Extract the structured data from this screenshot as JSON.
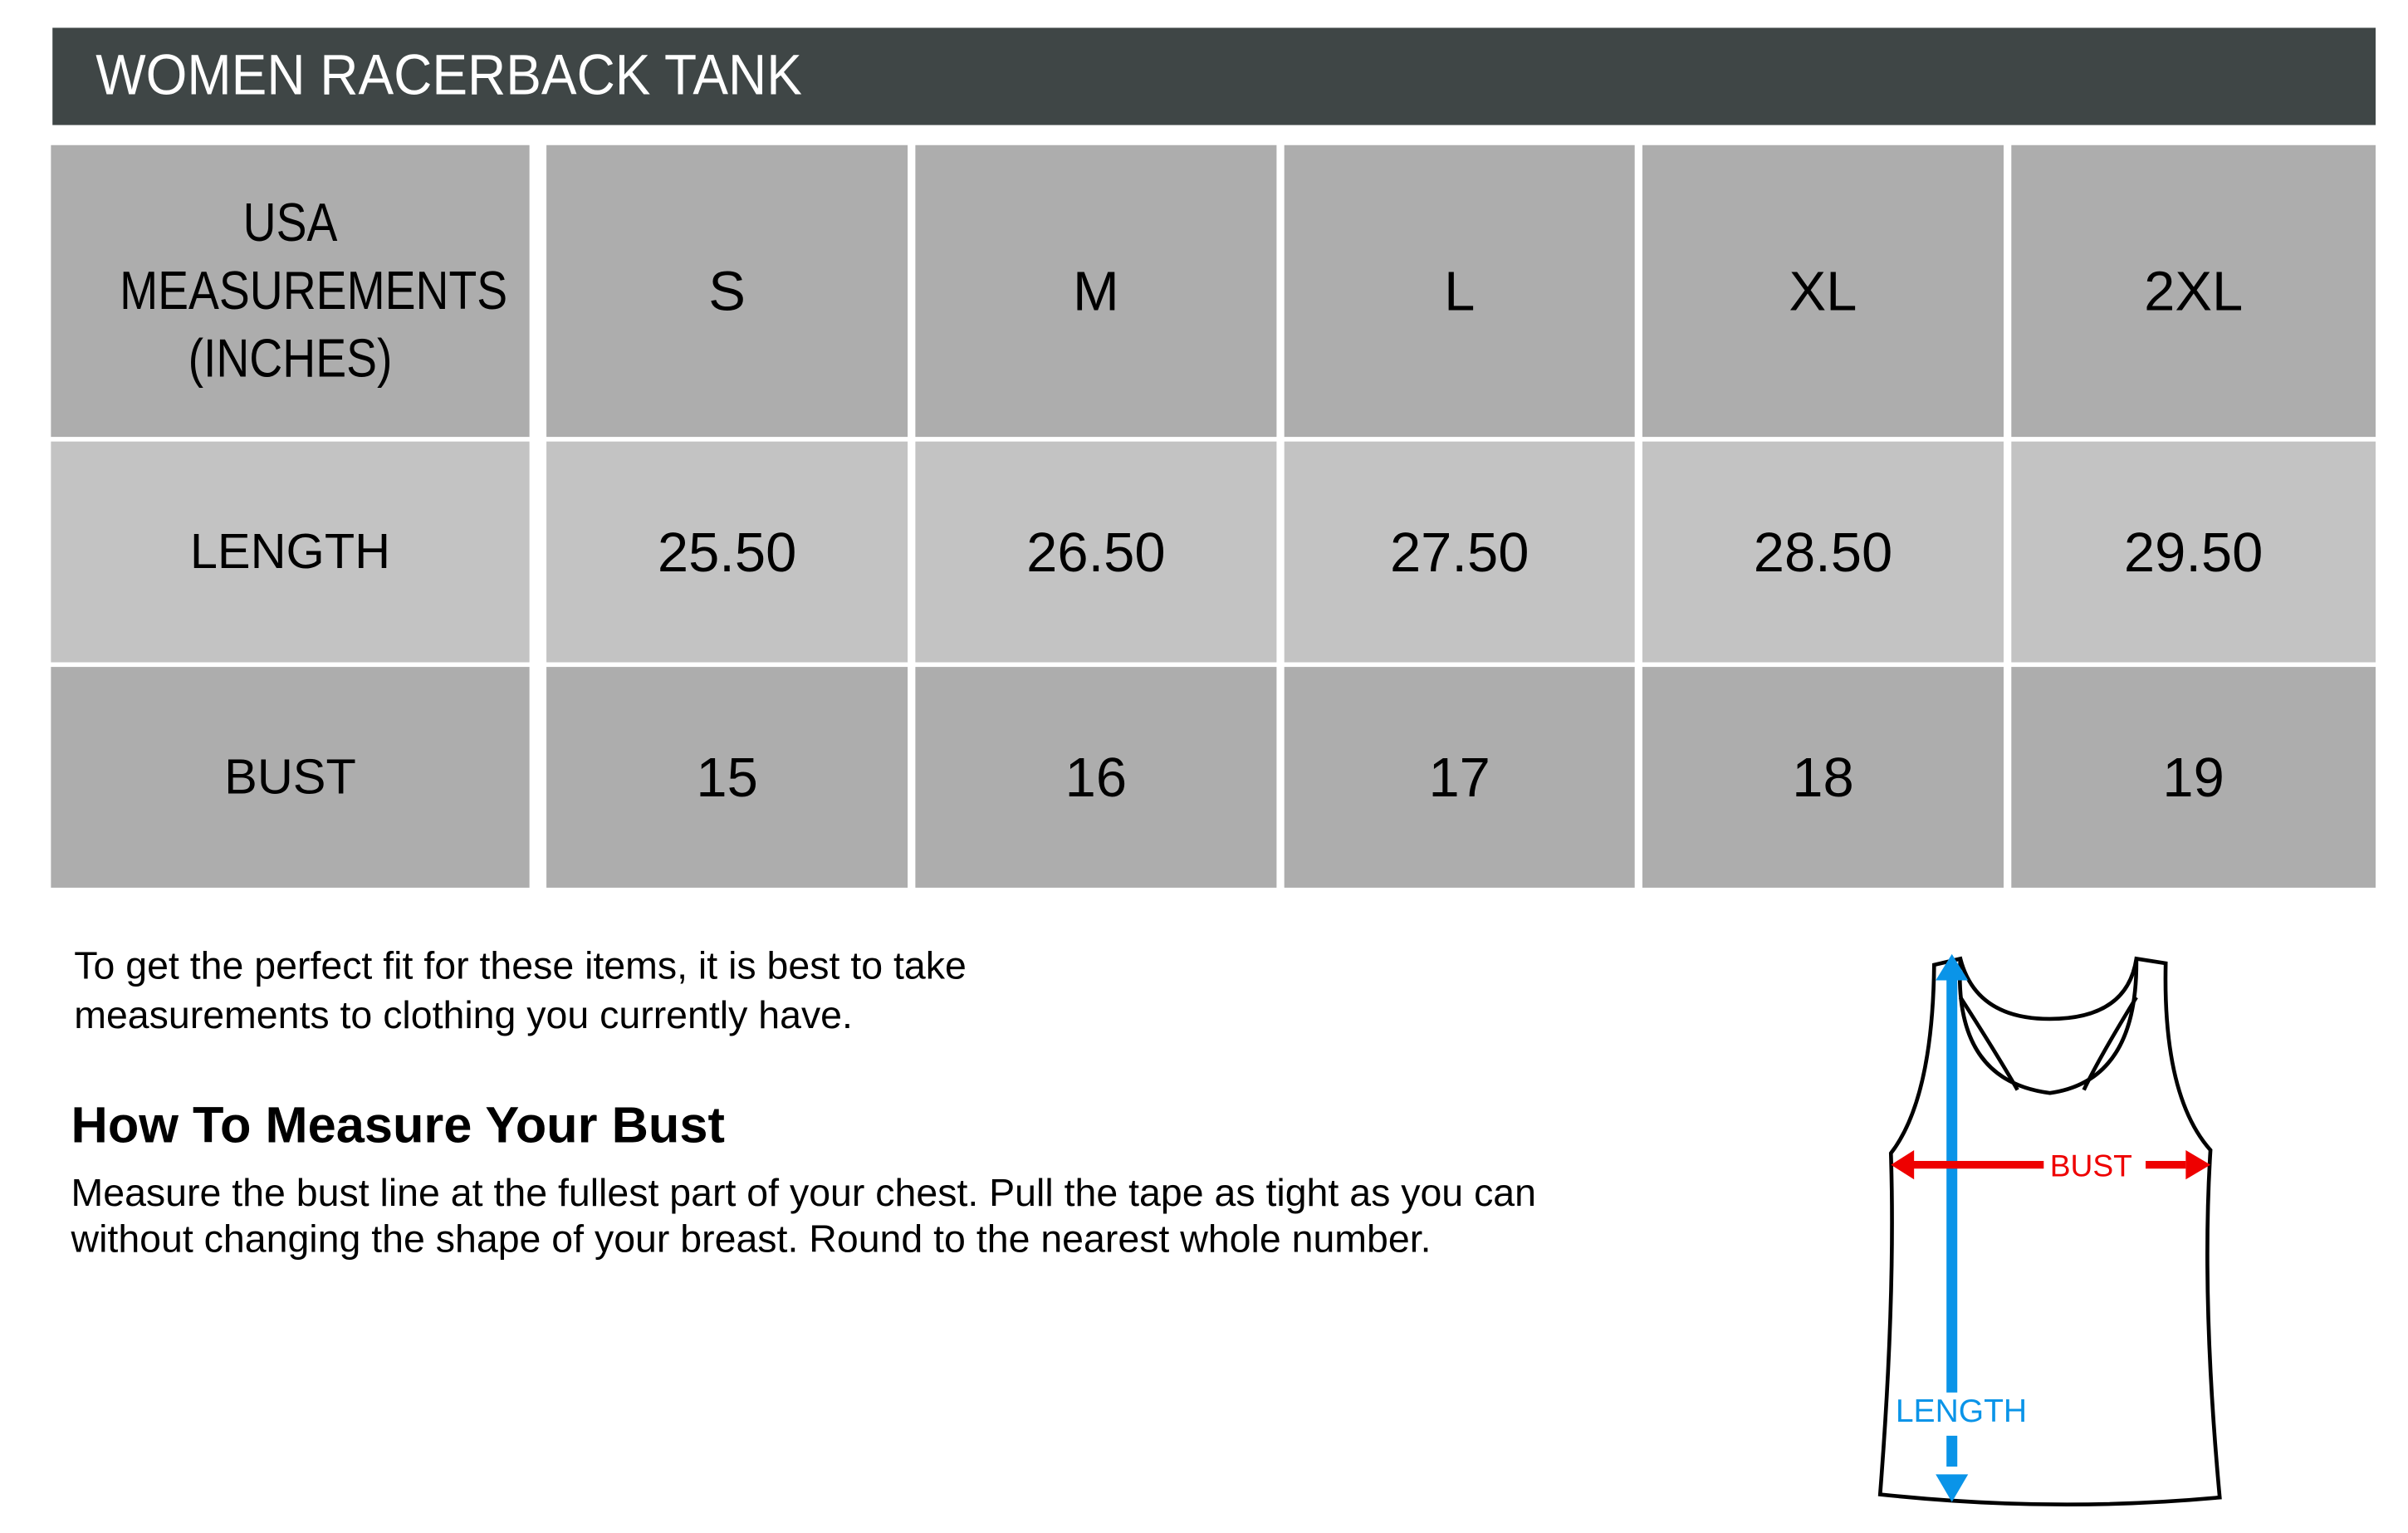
{
  "title": "WOMEN RACERBACK TANK",
  "table": {
    "corner_label": "USA MEASUREMENTS (INCHES)",
    "sizes": [
      "S",
      "M",
      "L",
      "XL",
      "2XL"
    ],
    "rows": [
      {
        "label": "LENGTH",
        "values": [
          "25.50",
          "26.50",
          "27.50",
          "28.50",
          "29.50"
        ]
      },
      {
        "label": "BUST",
        "values": [
          "15",
          "16",
          "17",
          "18",
          "19"
        ]
      }
    ]
  },
  "intro": {
    "line1": "To get the perfect fit for these items, it is best to take",
    "line2": "measurements to clothing you currently have."
  },
  "howto": {
    "heading": "How To Measure Your Bust",
    "line1": "Measure the bust line at the fullest part of your chest. Pull the tape as tight as you can",
    "line2": "without changing the shape of your breast.  Round to the nearest whole number."
  },
  "diagram": {
    "bust_label": "BUST",
    "length_label": "LENGTH",
    "bust_color": "#ee0000",
    "length_color": "#0a94e8"
  },
  "colors": {
    "header": "#3f4646",
    "row_dark": "#adadad",
    "row_light": "#c3c3c3"
  }
}
